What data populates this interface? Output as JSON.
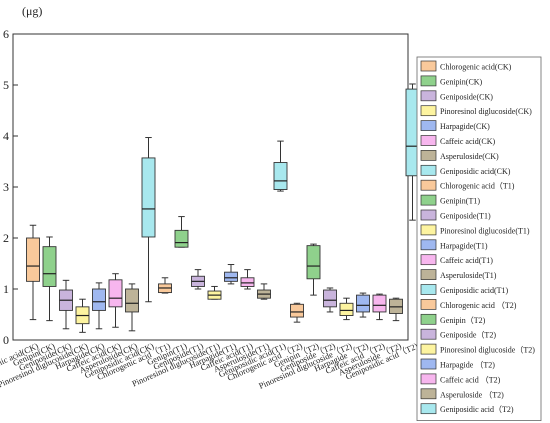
{
  "chart_data": {
    "type": "box",
    "unit_label": "(μg)",
    "ylim": [
      0,
      6
    ],
    "yticks": [
      "0",
      "1",
      "2",
      "3",
      "4",
      "5",
      "6"
    ],
    "grid": false,
    "legend_position": "right",
    "categories": [
      "Chlorogenic acid(CK)",
      "Genipin(CK)",
      "Geniposide(CK)",
      "Pinoresinol diglucoside(CK)",
      "Harpagide(CK)",
      "Caffeic acid(CK)",
      "Asperuloside(CK)",
      "Geniposidic acid(CK)",
      "Chlorogenic acid（T1)",
      "Genipin(T1)",
      "Geniposide(T1)",
      "Pinoresinol diglucoside(T1)",
      "Harpagide(T1)",
      "Caffeic acid(T1)",
      "Asperuloside(T1)",
      "Geniposidic acid(T1)",
      "Chlorogenic acid （T2)",
      "Genipin（T2)",
      "Geniposide（T2)",
      "Pinoresinol diglucoside（T2)",
      "Harpagide （T2)",
      "Caffeic acid （T2)",
      "Asperuloside （T2)",
      "Geniposidic acid（T2)"
    ],
    "colors": [
      "#f9c99b",
      "#8fd18c",
      "#c9b4dc",
      "#fdf4a0",
      "#9fb8f0",
      "#f7b6ee",
      "#bdb398",
      "#a8e8ee",
      "#f9c99b",
      "#8fd18c",
      "#c9b4dc",
      "#fdf4a0",
      "#9fb8f0",
      "#f7b6ee",
      "#bdb398",
      "#a8e8ee",
      "#f9c99b",
      "#8fd18c",
      "#c9b4dc",
      "#fdf4a0",
      "#9fb8f0",
      "#f7b6ee",
      "#bdb398",
      "#a8e8ee"
    ],
    "boxes": [
      {
        "min": 0.4,
        "q1": 1.15,
        "median": 1.45,
        "q3": 2.0,
        "max": 2.25
      },
      {
        "min": 0.38,
        "q1": 1.05,
        "median": 1.3,
        "q3": 1.83,
        "max": 2.02
      },
      {
        "min": 0.22,
        "q1": 0.58,
        "median": 0.78,
        "q3": 0.98,
        "max": 1.17
      },
      {
        "min": 0.15,
        "q1": 0.32,
        "median": 0.48,
        "q3": 0.65,
        "max": 0.8
      },
      {
        "min": 0.22,
        "q1": 0.58,
        "median": 0.75,
        "q3": 1.0,
        "max": 1.12
      },
      {
        "min": 0.25,
        "q1": 0.65,
        "median": 0.82,
        "q3": 1.18,
        "max": 1.3
      },
      {
        "min": 0.18,
        "q1": 0.55,
        "median": 0.72,
        "q3": 1.0,
        "max": 1.1
      },
      {
        "min": 0.75,
        "q1": 2.02,
        "median": 2.57,
        "q3": 3.57,
        "max": 3.97
      },
      {
        "min": 0.92,
        "q1": 0.93,
        "median": 1.02,
        "q3": 1.1,
        "max": 1.22
      },
      {
        "min": 1.82,
        "q1": 1.82,
        "median": 1.91,
        "q3": 2.15,
        "max": 2.42
      },
      {
        "min": 1.0,
        "q1": 1.05,
        "median": 1.15,
        "q3": 1.25,
        "max": 1.38
      },
      {
        "min": 0.8,
        "q1": 0.8,
        "median": 0.88,
        "q3": 0.96,
        "max": 1.05
      },
      {
        "min": 1.1,
        "q1": 1.15,
        "median": 1.22,
        "q3": 1.33,
        "max": 1.48
      },
      {
        "min": 1.0,
        "q1": 1.05,
        "median": 1.12,
        "q3": 1.22,
        "max": 1.38
      },
      {
        "min": 0.8,
        "q1": 0.82,
        "median": 0.9,
        "q3": 0.98,
        "max": 1.1
      },
      {
        "min": 2.92,
        "q1": 2.95,
        "median": 3.12,
        "q3": 3.48,
        "max": 3.9
      },
      {
        "min": 0.35,
        "q1": 0.45,
        "median": 0.55,
        "q3": 0.7,
        "max": 0.72
      },
      {
        "min": 0.88,
        "q1": 1.2,
        "median": 1.45,
        "q3": 1.85,
        "max": 1.88
      },
      {
        "min": 0.55,
        "q1": 0.65,
        "median": 0.78,
        "q3": 0.98,
        "max": 1.02
      },
      {
        "min": 0.4,
        "q1": 0.48,
        "median": 0.58,
        "q3": 0.72,
        "max": 0.82
      },
      {
        "min": 0.45,
        "q1": 0.55,
        "median": 0.68,
        "q3": 0.88,
        "max": 0.92
      },
      {
        "min": 0.4,
        "q1": 0.55,
        "median": 0.68,
        "q3": 0.88,
        "max": 0.9
      },
      {
        "min": 0.38,
        "q1": 0.52,
        "median": 0.65,
        "q3": 0.8,
        "max": 0.82
      },
      {
        "min": 2.35,
        "q1": 3.22,
        "median": 3.8,
        "q3": 4.92,
        "max": 5.02
      }
    ]
  }
}
